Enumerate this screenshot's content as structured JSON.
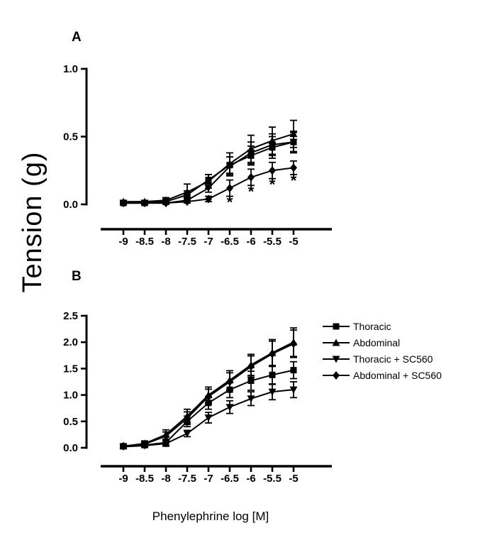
{
  "figure": {
    "y_axis_label": "Tension (g)",
    "x_axis_label": "Phenylephrine log [M]"
  },
  "colors": {
    "foreground": "#000000",
    "background": "#ffffff"
  },
  "legend": {
    "position": "right-middle",
    "items": [
      {
        "label": "Thoracic",
        "marker": "square"
      },
      {
        "label": "Abdominal",
        "marker": "triangle-up"
      },
      {
        "label": "Thoracic + SC560",
        "marker": "triangle-down"
      },
      {
        "label": "Abdominal + SC560",
        "marker": "diamond"
      }
    ]
  },
  "chart_data": [
    {
      "panel_label": "A",
      "type": "line",
      "xlabel": "Phenylephrine log [M]",
      "ylabel": "Tension (g)",
      "x": [
        -9,
        -8.5,
        -8,
        -7.5,
        -7,
        -6.5,
        -6,
        -5.5,
        -5
      ],
      "x_tick_labels": [
        "-9",
        "-8.5",
        "-8",
        "-7.5",
        "-7",
        "-6.5",
        "-6",
        "-5.5",
        "-5"
      ],
      "ylim": [
        0,
        1.0
      ],
      "y_ticks": [
        0,
        0.5,
        1.0
      ],
      "y_tick_labels": [
        "0.0",
        "0.5",
        "1.0"
      ],
      "grid": false,
      "error_bars": true,
      "series": [
        {
          "name": "Thoracic",
          "marker": "square",
          "values": [
            0.01,
            0.01,
            0.02,
            0.07,
            0.18,
            0.29,
            0.36,
            0.42,
            0.46
          ],
          "errors": [
            0.01,
            0.01,
            0.02,
            0.03,
            0.04,
            0.06,
            0.07,
            0.08,
            0.07
          ]
        },
        {
          "name": "Abdominal",
          "marker": "triangle-up",
          "values": [
            0.02,
            0.02,
            0.03,
            0.09,
            0.17,
            0.3,
            0.41,
            0.47,
            0.52
          ],
          "errors": [
            0.01,
            0.01,
            0.02,
            0.06,
            0.05,
            0.08,
            0.1,
            0.1,
            0.1
          ]
        },
        {
          "name": "Thoracic + SC560",
          "marker": "triangle-down",
          "values": [
            0.01,
            0.01,
            0.01,
            0.03,
            0.12,
            0.28,
            0.38,
            0.44,
            0.46
          ],
          "errors": [
            0.01,
            0.01,
            0.01,
            0.02,
            0.03,
            0.07,
            0.08,
            0.08,
            0.08
          ]
        },
        {
          "name": "Abdominal + SC560",
          "marker": "diamond",
          "values": [
            0.01,
            0.01,
            0.01,
            0.02,
            0.04,
            0.12,
            0.2,
            0.25,
            0.27
          ],
          "errors": [
            0.01,
            0.01,
            0.01,
            0.01,
            0.02,
            0.06,
            0.06,
            0.06,
            0.05
          ],
          "significance_symbol": "*",
          "significance_x": [
            -6.5,
            -6,
            -5.5,
            -5
          ]
        }
      ]
    },
    {
      "panel_label": "B",
      "type": "line",
      "xlabel": "Phenylephrine log [M]",
      "ylabel": "Tension (g)",
      "x": [
        -9,
        -8.5,
        -8,
        -7.5,
        -7,
        -6.5,
        -6,
        -5.5,
        -5
      ],
      "x_tick_labels": [
        "-9",
        "-8.5",
        "-8",
        "-7.5",
        "-7",
        "-6.5",
        "-6",
        "-5.5",
        "-5"
      ],
      "ylim": [
        0,
        2.5
      ],
      "y_ticks": [
        0,
        0.5,
        1.0,
        1.5,
        2.0,
        2.5
      ],
      "y_tick_labels": [
        "0.0",
        "0.5",
        "1.0",
        "1.5",
        "2.0",
        "2.5"
      ],
      "grid": false,
      "error_bars": true,
      "series": [
        {
          "name": "Thoracic",
          "marker": "square",
          "values": [
            0.03,
            0.05,
            0.1,
            0.5,
            0.85,
            1.1,
            1.27,
            1.38,
            1.47
          ],
          "errors": [
            0.02,
            0.04,
            0.06,
            0.1,
            0.12,
            0.15,
            0.18,
            0.18,
            0.16
          ]
        },
        {
          "name": "Abdominal",
          "marker": "triangle-up",
          "values": [
            0.03,
            0.08,
            0.25,
            0.6,
            1.0,
            1.28,
            1.57,
            1.8,
            2.0
          ],
          "errors": [
            0.02,
            0.05,
            0.09,
            0.13,
            0.15,
            0.18,
            0.2,
            0.25,
            0.27
          ]
        },
        {
          "name": "Thoracic + SC560",
          "marker": "triangle-down",
          "values": [
            0.02,
            0.04,
            0.08,
            0.27,
            0.57,
            0.77,
            0.93,
            1.06,
            1.1
          ],
          "errors": [
            0.02,
            0.03,
            0.05,
            0.06,
            0.1,
            0.12,
            0.13,
            0.15,
            0.15
          ]
        },
        {
          "name": "Abdominal + SC560",
          "marker": "diamond",
          "values": [
            0.03,
            0.07,
            0.22,
            0.56,
            0.97,
            1.25,
            1.54,
            1.78,
            1.97
          ],
          "errors": [
            0.02,
            0.04,
            0.08,
            0.12,
            0.14,
            0.17,
            0.2,
            0.24,
            0.26
          ]
        }
      ]
    }
  ]
}
